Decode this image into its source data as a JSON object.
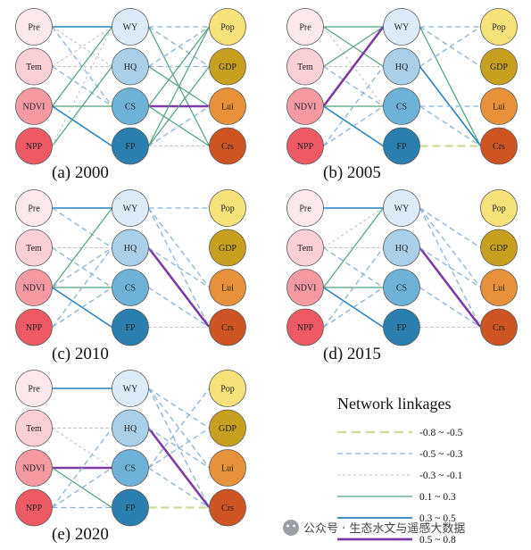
{
  "nodes": {
    "climate": [
      {
        "id": "Pre",
        "label": "Pre",
        "color": "#fde8ec"
      },
      {
        "id": "Tem",
        "label": "Tem",
        "color": "#fbcfd6"
      },
      {
        "id": "NDVI",
        "label": "NDVI",
        "color": "#f59aa3"
      },
      {
        "id": "NPP",
        "label": "NPP",
        "color": "#ee5a63"
      }
    ],
    "services": [
      {
        "id": "WY",
        "label": "WY",
        "color": "#dcebf7"
      },
      {
        "id": "HQ",
        "label": "HQ",
        "color": "#a9d0e8"
      },
      {
        "id": "CS",
        "label": "CS",
        "color": "#6fb2d8"
      },
      {
        "id": "FP",
        "label": "FP",
        "color": "#2b7fae"
      }
    ],
    "human": [
      {
        "id": "Pop",
        "label": "Pop",
        "color": "#f7e27a"
      },
      {
        "id": "GDP",
        "label": "GDP",
        "color": "#c8a020"
      },
      {
        "id": "Lui",
        "label": "Lui",
        "color": "#e7913a"
      },
      {
        "id": "Crs",
        "label": "Crs",
        "color": "#cf5424"
      }
    ]
  },
  "panels": [
    {
      "label": "(a) 2000",
      "links": [
        [
          "Pre",
          "WY",
          5
        ],
        [
          "Pre",
          "HQ",
          3
        ],
        [
          "Pre",
          "CS",
          2
        ],
        [
          "Tem",
          "WY",
          3
        ],
        [
          "Tem",
          "HQ",
          3
        ],
        [
          "Tem",
          "CS",
          2
        ],
        [
          "NDVI",
          "WY",
          4
        ],
        [
          "NDVI",
          "CS",
          4
        ],
        [
          "NDVI",
          "FP",
          5
        ],
        [
          "NPP",
          "HQ",
          4
        ],
        [
          "NPP",
          "WY",
          3
        ],
        [
          "WY",
          "Pop",
          2
        ],
        [
          "WY",
          "GDP",
          2
        ],
        [
          "WY",
          "Crs",
          4
        ],
        [
          "HQ",
          "Pop",
          2
        ],
        [
          "HQ",
          "GDP",
          2
        ],
        [
          "HQ",
          "Lui",
          4
        ],
        [
          "CS",
          "Lui",
          6
        ],
        [
          "CS",
          "Crs",
          4
        ],
        [
          "CS",
          "Pop",
          4
        ],
        [
          "FP",
          "Crs",
          3
        ],
        [
          "FP",
          "Pop",
          4
        ],
        [
          "FP",
          "GDP",
          4
        ],
        [
          "FP",
          "Lui",
          2
        ]
      ]
    },
    {
      "label": "(b) 2005",
      "links": [
        [
          "Pre",
          "WY",
          4
        ],
        [
          "Pre",
          "HQ",
          4
        ],
        [
          "Pre",
          "CS",
          3
        ],
        [
          "Tem",
          "WY",
          4
        ],
        [
          "Tem",
          "HQ",
          3
        ],
        [
          "Tem",
          "CS",
          2
        ],
        [
          "NDVI",
          "WY",
          6
        ],
        [
          "NDVI",
          "CS",
          4
        ],
        [
          "NDVI",
          "FP",
          5
        ],
        [
          "NPP",
          "HQ",
          2
        ],
        [
          "NPP",
          "CS",
          2
        ],
        [
          "WY",
          "Pop",
          2
        ],
        [
          "WY",
          "GDP",
          2
        ],
        [
          "WY",
          "Crs",
          4
        ],
        [
          "HQ",
          "Crs",
          5
        ],
        [
          "HQ",
          "Pop",
          2
        ],
        [
          "CS",
          "Crs",
          2
        ],
        [
          "CS",
          "Lui",
          2
        ],
        [
          "FP",
          "Crs",
          1
        ]
      ]
    },
    {
      "label": "(c) 2010",
      "links": [
        [
          "Pre",
          "WY",
          5
        ],
        [
          "Pre",
          "HQ",
          2
        ],
        [
          "Tem",
          "HQ",
          3
        ],
        [
          "Tem",
          "CS",
          2
        ],
        [
          "NDVI",
          "WY",
          4
        ],
        [
          "NDVI",
          "CS",
          4
        ],
        [
          "NDVI",
          "FP",
          5
        ],
        [
          "NDVI",
          "HQ",
          2
        ],
        [
          "NPP",
          "HQ",
          2
        ],
        [
          "NPP",
          "CS",
          2
        ],
        [
          "WY",
          "Pop",
          2
        ],
        [
          "WY",
          "Lui",
          2
        ],
        [
          "WY",
          "Crs",
          2
        ],
        [
          "HQ",
          "Crs",
          6
        ],
        [
          "HQ",
          "Lui",
          2
        ],
        [
          "CS",
          "Crs",
          2
        ],
        [
          "FP",
          "Crs",
          3
        ]
      ]
    },
    {
      "label": "(d) 2015",
      "links": [
        [
          "Pre",
          "WY",
          5
        ],
        [
          "Tem",
          "WY",
          3
        ],
        [
          "Tem",
          "HQ",
          3
        ],
        [
          "Tem",
          "CS",
          2
        ],
        [
          "NDVI",
          "WY",
          4
        ],
        [
          "NDVI",
          "CS",
          4
        ],
        [
          "NDVI",
          "FP",
          5
        ],
        [
          "NPP",
          "HQ",
          2
        ],
        [
          "NPP",
          "CS",
          2
        ],
        [
          "WY",
          "GDP",
          2
        ],
        [
          "WY",
          "Lui",
          2
        ],
        [
          "WY",
          "Crs",
          2
        ],
        [
          "HQ",
          "Crs",
          6
        ],
        [
          "HQ",
          "Lui",
          2
        ],
        [
          "CS",
          "Crs",
          2
        ],
        [
          "FP",
          "Crs",
          3
        ]
      ]
    },
    {
      "label": "(e) 2020",
      "links": [
        [
          "Pre",
          "WY",
          5
        ],
        [
          "Tem",
          "HQ",
          3
        ],
        [
          "Tem",
          "CS",
          3
        ],
        [
          "NDVI",
          "CS",
          6
        ],
        [
          "NDVI",
          "FP",
          4
        ],
        [
          "NPP",
          "HQ",
          2
        ],
        [
          "NPP",
          "CS",
          2
        ],
        [
          "NPP",
          "FP",
          2
        ],
        [
          "WY",
          "Lui",
          2
        ],
        [
          "WY",
          "Crs",
          2
        ],
        [
          "WY",
          "GDP",
          2
        ],
        [
          "HQ",
          "Crs",
          6
        ],
        [
          "HQ",
          "Lui",
          2
        ],
        [
          "CS",
          "Pop",
          2
        ],
        [
          "CS",
          "GDP",
          2
        ],
        [
          "CS",
          "Crs",
          2
        ],
        [
          "FP",
          "Crs",
          1
        ]
      ]
    }
  ],
  "legend": {
    "title": "Network linkages",
    "items": [
      {
        "label": "-0.8 ~ -0.5",
        "color": "#c9dc98",
        "style": "dash-long"
      },
      {
        "label": "-0.5 ~ -0.3",
        "color": "#89b2d6",
        "style": "dash"
      },
      {
        "label": "-0.3 ~ -0.1",
        "color": "#bcbcbc",
        "style": "dot"
      },
      {
        "label": "0.1 ~ 0.3",
        "color": "#4f9f7d",
        "style": "solid-thin"
      },
      {
        "label": "0.3 ~ 0.5",
        "color": "#2a82bd",
        "style": "solid-mid"
      },
      {
        "label": "0.5 ~ 0.8",
        "color": "#7a3ba5",
        "style": "solid-thick"
      }
    ]
  },
  "watermark": {
    "text": "公众号 · 生态水文与遥感大数据"
  }
}
